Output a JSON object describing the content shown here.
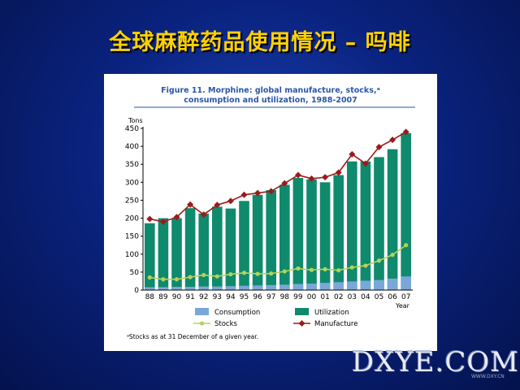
{
  "slide": {
    "title": "全球麻醉药品使用情况 – 吗啡",
    "watermark": "DXYE.COM",
    "watermark_sub": "WWW.DXY.CN"
  },
  "colors": {
    "utilization": "#0f8a6c",
    "consumption": "#7aa7d9",
    "stocks": "#b4d35a",
    "manufacture": "#9b1b1b",
    "title": "#2a56a8"
  },
  "chart_data": {
    "type": "bar",
    "title_line1": "Figure 11.   Morphine: global manufacture, stocks,ᵃ",
    "title_line2": "consumption and utilization, 1988-2007",
    "ylabel": "Tons",
    "xlabel": "Year",
    "ylim": [
      0,
      450
    ],
    "yticks": [
      0,
      50,
      100,
      150,
      200,
      250,
      300,
      350,
      400,
      450
    ],
    "categories": [
      "88",
      "89",
      "90",
      "91",
      "92",
      "93",
      "94",
      "95",
      "96",
      "97",
      "98",
      "99",
      "00",
      "01",
      "02",
      "03",
      "04",
      "05",
      "06",
      "07"
    ],
    "series": [
      {
        "name": "Utilization",
        "kind": "bar",
        "values": [
          186,
          200,
          200,
          228,
          213,
          232,
          227,
          248,
          265,
          278,
          293,
          312,
          308,
          300,
          320,
          358,
          358,
          370,
          392,
          437
        ]
      },
      {
        "name": "Consumption",
        "kind": "bar",
        "values": [
          8,
          8,
          9,
          9,
          10,
          10,
          11,
          12,
          13,
          14,
          15,
          17,
          18,
          20,
          22,
          24,
          26,
          28,
          32,
          38
        ]
      },
      {
        "name": "Stocks",
        "kind": "line",
        "values": [
          35,
          30,
          30,
          36,
          42,
          38,
          44,
          48,
          45,
          46,
          52,
          60,
          56,
          58,
          55,
          63,
          68,
          82,
          98,
          125
        ]
      },
      {
        "name": "Manufacture",
        "kind": "line",
        "values": [
          198,
          190,
          203,
          238,
          210,
          237,
          248,
          265,
          270,
          275,
          297,
          320,
          310,
          314,
          327,
          378,
          352,
          398,
          418,
          440
        ]
      }
    ],
    "legend": [
      {
        "name": "Consumption",
        "kind": "bar"
      },
      {
        "name": "Utilization",
        "kind": "bar"
      },
      {
        "name": "Stocks",
        "kind": "line"
      },
      {
        "name": "Manufacture",
        "kind": "line"
      }
    ],
    "legend_position": "bottom",
    "footnote": "ᵃStocks as at 31 December of a given year."
  }
}
